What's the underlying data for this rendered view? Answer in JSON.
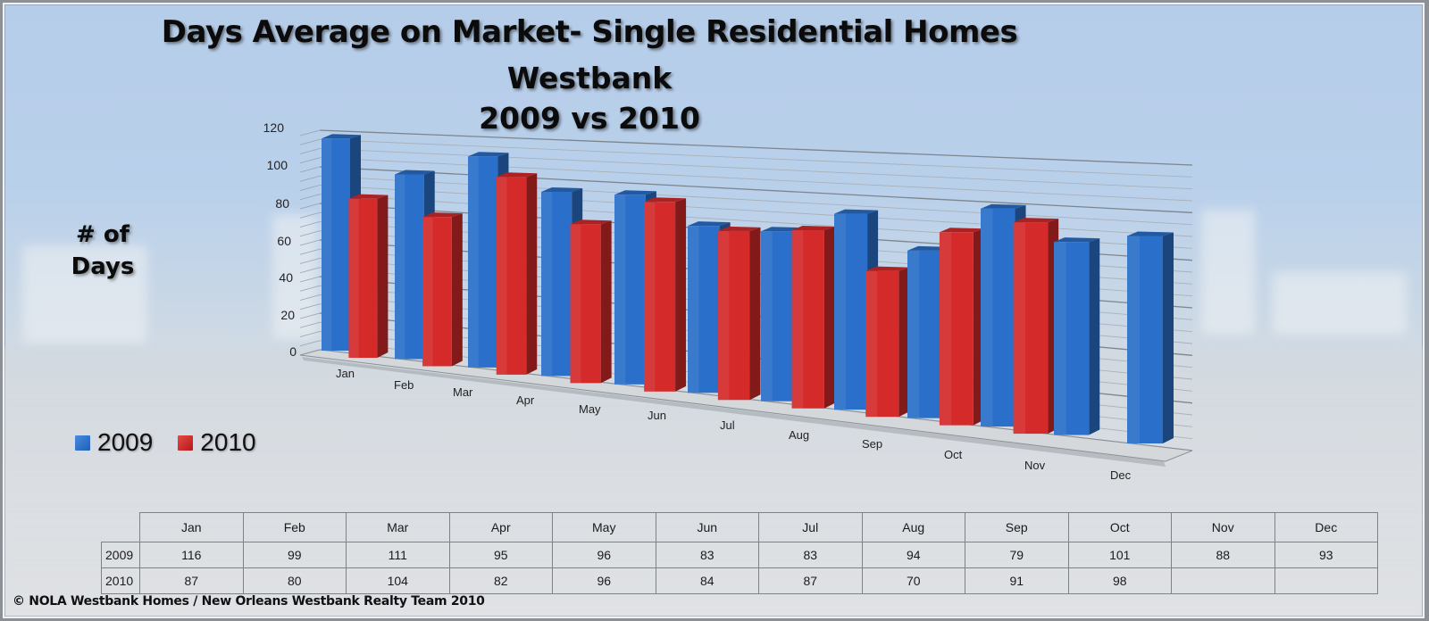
{
  "title": {
    "line1": "Days Average on Market- Single Residential Homes",
    "line2": "Westbank",
    "line3": "2009 vs 2010"
  },
  "y_axis": {
    "label_line1": "# of",
    "label_line2": "Days",
    "ticks": [
      "120",
      "100",
      "80",
      "60",
      "40",
      "20",
      "0"
    ]
  },
  "legend": [
    {
      "label": "2009",
      "color": "#2a6fc9"
    },
    {
      "label": "2010",
      "color": "#d42a2a"
    }
  ],
  "table": {
    "columns": [
      "Jan",
      "Feb",
      "Mar",
      "Apr",
      "May",
      "Jun",
      "Jul",
      "Aug",
      "Sep",
      "Oct",
      "Nov",
      "Dec"
    ],
    "rows": [
      {
        "label": "2009",
        "values": [
          "116",
          "99",
          "111",
          "95",
          "96",
          "83",
          "83",
          "94",
          "79",
          "101",
          "88",
          "93"
        ]
      },
      {
        "label": "2010",
        "values": [
          "87",
          "80",
          "104",
          "82",
          "96",
          "84",
          "87",
          "70",
          "91",
          "98",
          "",
          ""
        ]
      }
    ]
  },
  "footer": {
    "copyright": "© NOLA Westbank Homes / New Orleans Westbank Realty Team 2010"
  },
  "chart_data": {
    "type": "bar",
    "title": "Days Average on Market- Single Residential Homes Westbank 2009 vs 2010",
    "xlabel": "",
    "ylabel": "# of Days",
    "ylim": [
      0,
      120
    ],
    "yticks": [
      0,
      20,
      40,
      60,
      80,
      100,
      120
    ],
    "grid": true,
    "legend_position": "left",
    "style": "3d-clustered-column",
    "categories": [
      "Jan",
      "Feb",
      "Mar",
      "Apr",
      "May",
      "Jun",
      "Jul",
      "Aug",
      "Sep",
      "Oct",
      "Nov",
      "Dec"
    ],
    "series": [
      {
        "name": "2009",
        "color": "#2a6fc9",
        "values": [
          116,
          99,
          111,
          95,
          96,
          83,
          83,
          94,
          79,
          101,
          88,
          93
        ]
      },
      {
        "name": "2010",
        "color": "#d42a2a",
        "values": [
          87,
          80,
          104,
          82,
          96,
          84,
          87,
          70,
          91,
          98,
          null,
          null
        ]
      }
    ]
  }
}
